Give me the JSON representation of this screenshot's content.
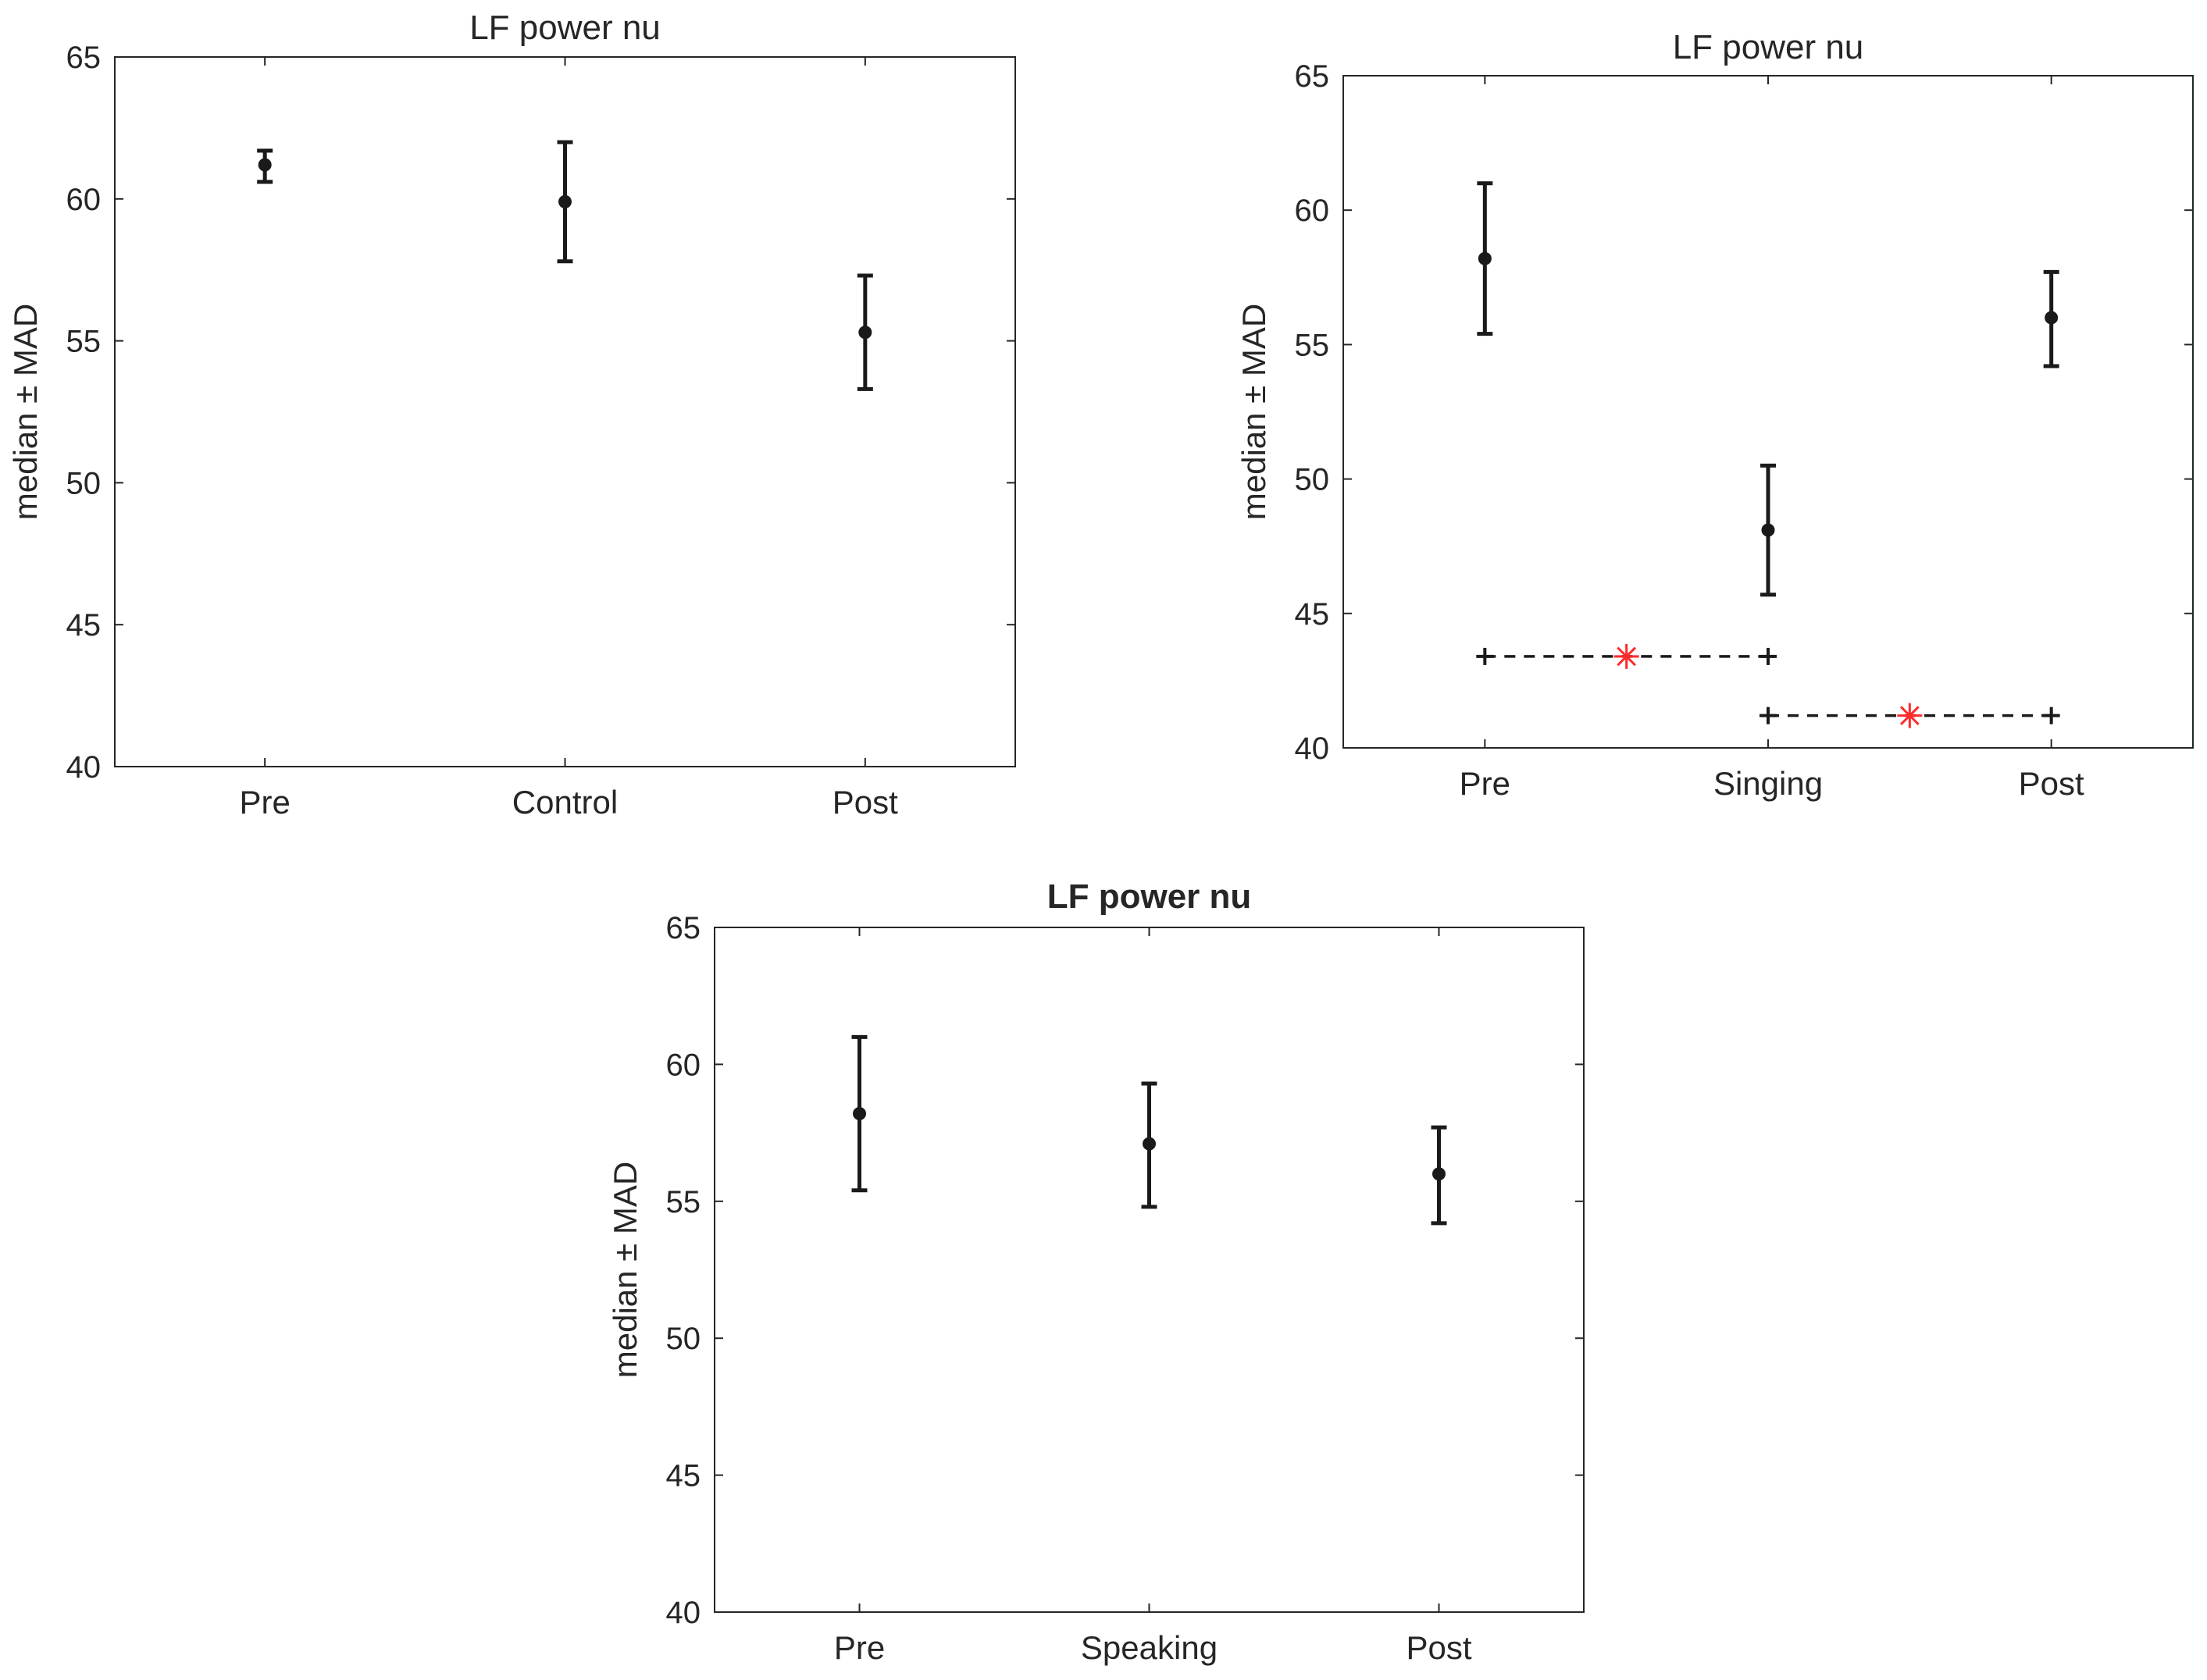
{
  "figure": {
    "colors": {
      "axis": "#262626",
      "marker": "#1a1a1a",
      "significance": "#ff2a2a",
      "background": "#ffffff"
    }
  },
  "chart_data": [
    {
      "type": "errorbar",
      "title": "LF power nu",
      "title_bold": false,
      "xlabel": "",
      "ylabel": "median ± MAD",
      "ylim": [
        40,
        65
      ],
      "yticks": [
        40,
        45,
        50,
        55,
        60,
        65
      ],
      "categories": [
        "Pre",
        "Control",
        "Post"
      ],
      "series": [
        {
          "name": "median",
          "values": [
            61.2,
            59.9,
            55.3
          ],
          "err_low": [
            60.6,
            57.8,
            53.3
          ],
          "err_high": [
            61.7,
            62.0,
            57.3
          ]
        }
      ],
      "significance": []
    },
    {
      "type": "errorbar",
      "title": "LF power nu",
      "title_bold": false,
      "xlabel": "",
      "ylabel": "median ± MAD",
      "ylim": [
        40,
        65
      ],
      "yticks": [
        40,
        45,
        50,
        55,
        60,
        65
      ],
      "categories": [
        "Pre",
        "Singing",
        "Post"
      ],
      "series": [
        {
          "name": "median",
          "values": [
            58.2,
            48.1,
            56.0
          ],
          "err_low": [
            55.4,
            45.7,
            54.2
          ],
          "err_high": [
            61.0,
            50.5,
            57.7
          ]
        }
      ],
      "significance": [
        {
          "from": 0,
          "to": 1,
          "y": 43.4,
          "marker": "*"
        },
        {
          "from": 1,
          "to": 2,
          "y": 41.2,
          "marker": "*"
        }
      ]
    },
    {
      "type": "errorbar",
      "title": "LF power nu",
      "title_bold": true,
      "xlabel": "",
      "ylabel": "median ± MAD",
      "ylim": [
        40,
        65
      ],
      "yticks": [
        40,
        45,
        50,
        55,
        60,
        65
      ],
      "categories": [
        "Pre",
        "Speaking",
        "Post"
      ],
      "series": [
        {
          "name": "median",
          "values": [
            58.2,
            57.1,
            56.0
          ],
          "err_low": [
            55.4,
            54.8,
            54.2
          ],
          "err_high": [
            61.0,
            59.3,
            57.7
          ]
        }
      ],
      "significance": []
    }
  ]
}
